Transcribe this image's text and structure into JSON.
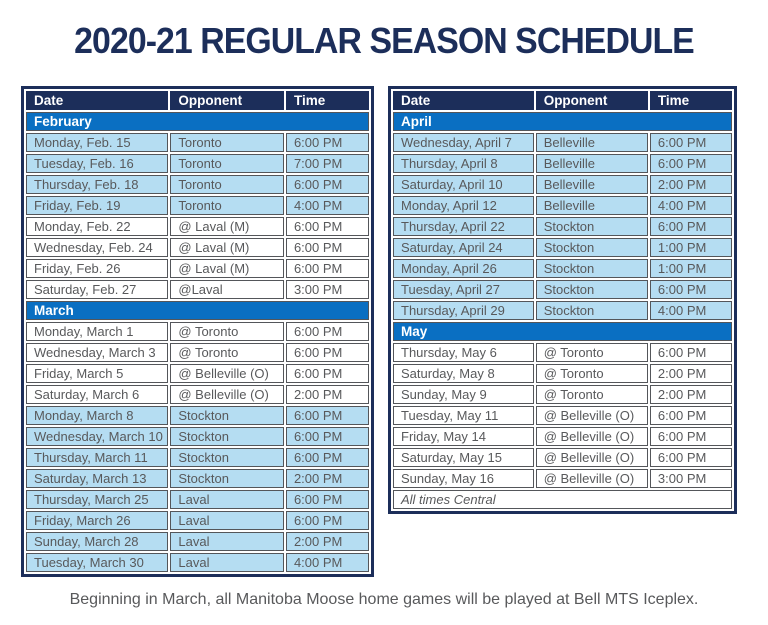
{
  "title": "2020-21 REGULAR SEASON SCHEDULE",
  "footer": "Beginning in March, all Manitoba Moose home games will be played at Bell MTS Iceplex.",
  "colors": {
    "navy": "#1c2e5a",
    "month_blue": "#0a6fc2",
    "home_row_blue": "#b5ddf2",
    "cell_border": "#54565a",
    "cell_text": "#58595b"
  },
  "tables": [
    {
      "name": "february-march-table",
      "columns": [
        "Date",
        "Opponent",
        "Time"
      ],
      "sections": [
        {
          "month": "February",
          "games": [
            {
              "date": "Monday, Feb. 15",
              "opponent": "Toronto",
              "time": "6:00 PM",
              "shaded": true
            },
            {
              "date": "Tuesday, Feb. 16",
              "opponent": "Toronto",
              "time": "7:00 PM",
              "shaded": true
            },
            {
              "date": "Thursday, Feb. 18",
              "opponent": "Toronto",
              "time": "6:00 PM",
              "shaded": true
            },
            {
              "date": "Friday, Feb. 19",
              "opponent": "Toronto",
              "time": "4:00 PM",
              "shaded": true
            },
            {
              "date": "Monday, Feb. 22",
              "opponent": "@ Laval (M)",
              "time": "6:00 PM",
              "shaded": false
            },
            {
              "date": "Wednesday, Feb. 24",
              "opponent": "@ Laval (M)",
              "time": "6:00 PM",
              "shaded": false
            },
            {
              "date": "Friday, Feb. 26",
              "opponent": "@ Laval (M)",
              "time": "6:00 PM",
              "shaded": false
            },
            {
              "date": "Saturday, Feb. 27",
              "opponent": "@Laval",
              "time": "3:00 PM",
              "shaded": false
            }
          ]
        },
        {
          "month": "March",
          "games": [
            {
              "date": "Monday, March 1",
              "opponent": "@ Toronto",
              "time": "6:00 PM",
              "shaded": false
            },
            {
              "date": "Wednesday, March 3",
              "opponent": "@ Toronto",
              "time": "6:00 PM",
              "shaded": false
            },
            {
              "date": "Friday, March 5",
              "opponent": "@ Belleville (O)",
              "time": "6:00 PM",
              "shaded": false
            },
            {
              "date": "Saturday, March 6",
              "opponent": "@ Belleville (O)",
              "time": "2:00 PM",
              "shaded": false
            },
            {
              "date": "Monday, March 8",
              "opponent": "Stockton",
              "time": "6:00 PM",
              "shaded": true
            },
            {
              "date": "Wednesday, March 10",
              "opponent": "Stockton",
              "time": "6:00 PM",
              "shaded": true
            },
            {
              "date": "Thursday, March 11",
              "opponent": "Stockton",
              "time": "6:00 PM",
              "shaded": true
            },
            {
              "date": "Saturday, March 13",
              "opponent": "Stockton",
              "time": "2:00 PM",
              "shaded": true
            },
            {
              "date": "Thursday, March 25",
              "opponent": "Laval",
              "time": "6:00 PM",
              "shaded": true
            },
            {
              "date": "Friday, March 26",
              "opponent": "Laval",
              "time": "6:00 PM",
              "shaded": true
            },
            {
              "date": "Sunday, March 28",
              "opponent": "Laval",
              "time": "2:00 PM",
              "shaded": true
            },
            {
              "date": "Tuesday, March 30",
              "opponent": "Laval",
              "time": "4:00 PM",
              "shaded": true
            }
          ]
        }
      ],
      "note": null
    },
    {
      "name": "april-may-table",
      "columns": [
        "Date",
        "Opponent",
        "Time"
      ],
      "sections": [
        {
          "month": "April",
          "games": [
            {
              "date": "Wednesday, April 7",
              "opponent": "Belleville",
              "time": "6:00 PM",
              "shaded": true
            },
            {
              "date": "Thursday, April 8",
              "opponent": "Belleville",
              "time": "6:00 PM",
              "shaded": true
            },
            {
              "date": "Saturday, April 10",
              "opponent": "Belleville",
              "time": "2:00 PM",
              "shaded": true
            },
            {
              "date": "Monday, April 12",
              "opponent": "Belleville",
              "time": "4:00 PM",
              "shaded": true
            },
            {
              "date": "Thursday, April 22",
              "opponent": "Stockton",
              "time": "6:00 PM",
              "shaded": true
            },
            {
              "date": "Saturday, April 24",
              "opponent": "Stockton",
              "time": "1:00 PM",
              "shaded": true
            },
            {
              "date": "Monday, April 26",
              "opponent": "Stockton",
              "time": "1:00 PM",
              "shaded": true
            },
            {
              "date": "Tuesday, April 27",
              "opponent": "Stockton",
              "time": "6:00 PM",
              "shaded": true
            },
            {
              "date": "Thursday, April 29",
              "opponent": "Stockton",
              "time": "4:00 PM",
              "shaded": true
            }
          ]
        },
        {
          "month": "May",
          "games": [
            {
              "date": "Thursday, May 6",
              "opponent": "@ Toronto",
              "time": "6:00 PM",
              "shaded": false
            },
            {
              "date": "Saturday, May 8",
              "opponent": "@ Toronto",
              "time": "2:00 PM",
              "shaded": false
            },
            {
              "date": "Sunday, May 9",
              "opponent": "@ Toronto",
              "time": "2:00 PM",
              "shaded": false
            },
            {
              "date": "Tuesday, May 11",
              "opponent": "@ Belleville (O)",
              "time": "6:00 PM",
              "shaded": false
            },
            {
              "date": "Friday, May 14",
              "opponent": "@ Belleville (O)",
              "time": "6:00 PM",
              "shaded": false
            },
            {
              "date": "Saturday, May 15",
              "opponent": "@ Belleville (O)",
              "time": "6:00 PM",
              "shaded": false
            },
            {
              "date": "Sunday, May 16",
              "opponent": "@ Belleville (O)",
              "time": "3:00 PM",
              "shaded": false
            }
          ]
        }
      ],
      "note": "All times Central"
    }
  ]
}
